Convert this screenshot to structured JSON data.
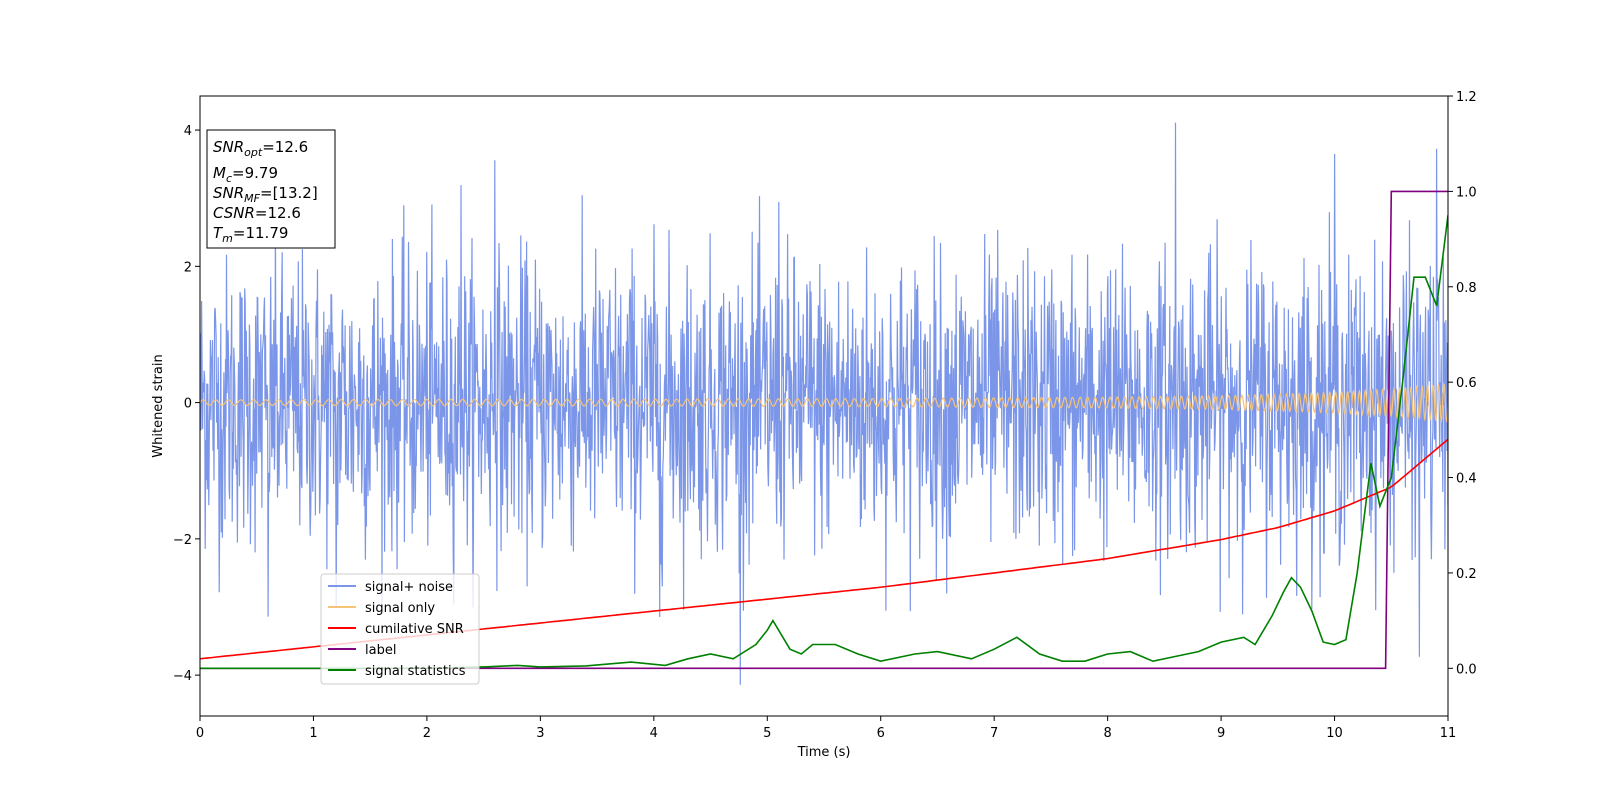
{
  "chart_data": {
    "type": "line",
    "xlabel": "Time (s)",
    "ylabel": "Whitened strain",
    "xlim": [
      0,
      11
    ],
    "ylim": [
      -4.6,
      4.5
    ],
    "y2lim": [
      -0.1,
      1.2
    ],
    "x_ticks": [
      "0",
      "1",
      "2",
      "3",
      "4",
      "5",
      "6",
      "7",
      "8",
      "9",
      "10",
      "11"
    ],
    "y_ticks": [
      "-4",
      "-2",
      "0",
      "2",
      "4"
    ],
    "y2_ticks": [
      "0.0",
      "0.2",
      "0.4",
      "0.6",
      "0.8",
      "1.0",
      "1.2"
    ],
    "grid": false,
    "legend_position": "lower-left",
    "info_box": {
      "snr_opt": "=12.6",
      "mc": "=9.79",
      "snr_mf": "=[13.2]",
      "csnr": "=12.6",
      "tm": "=11.79"
    },
    "series": [
      {
        "name": "signal+ noise",
        "color": "#7b96e8",
        "axis": "left",
        "noise_std": 1.0,
        "spike_x": [
          0.6,
          1.2,
          2.3,
          2.6,
          4.05,
          4.76,
          5.1,
          8.6,
          10.0,
          10.75,
          10.9
        ],
        "spike_y": [
          -3.1,
          -3.0,
          3.2,
          3.6,
          -3.1,
          -4.15,
          3.0,
          4.05,
          3.65,
          -3.55,
          3.6
        ]
      },
      {
        "name": "signal only",
        "color": "#f5c37a",
        "axis": "left",
        "x": [
          0,
          2,
          4,
          6,
          8,
          9,
          10,
          10.5,
          11
        ],
        "envelope": [
          0.04,
          0.045,
          0.05,
          0.06,
          0.08,
          0.1,
          0.15,
          0.2,
          0.28
        ]
      },
      {
        "name": "cumilative SNR",
        "color": "#ff0000",
        "axis": "right",
        "x": [
          0,
          1,
          2,
          3,
          4,
          5,
          6,
          7,
          8,
          9,
          9.5,
          10,
          10.5,
          11
        ],
        "values": [
          0.02,
          0.045,
          0.07,
          0.095,
          0.12,
          0.145,
          0.17,
          0.2,
          0.23,
          0.27,
          0.295,
          0.33,
          0.38,
          0.48
        ]
      },
      {
        "name": "label",
        "color": "#800080",
        "axis": "right",
        "x": [
          0,
          10.45,
          10.5,
          11
        ],
        "values": [
          0.0,
          0.0,
          1.0,
          1.0
        ]
      },
      {
        "name": "signal statistics",
        "color": "#008000",
        "axis": "right",
        "x": [
          0,
          1,
          2,
          2.5,
          2.8,
          3,
          3.4,
          3.8,
          4.1,
          4.3,
          4.5,
          4.7,
          4.9,
          5.0,
          5.05,
          5.2,
          5.3,
          5.4,
          5.6,
          5.8,
          6.0,
          6.3,
          6.5,
          6.8,
          7.0,
          7.2,
          7.4,
          7.6,
          7.8,
          8.0,
          8.2,
          8.4,
          8.6,
          8.8,
          9.0,
          9.2,
          9.3,
          9.45,
          9.55,
          9.62,
          9.7,
          9.8,
          9.9,
          10.0,
          10.1,
          10.2,
          10.32,
          10.4,
          10.5,
          10.6,
          10.7,
          10.8,
          10.9,
          11.0
        ],
        "values": [
          0.0,
          0.0,
          0.0,
          0.003,
          0.006,
          0.003,
          0.005,
          0.013,
          0.006,
          0.02,
          0.03,
          0.02,
          0.05,
          0.08,
          0.1,
          0.04,
          0.03,
          0.05,
          0.05,
          0.03,
          0.015,
          0.03,
          0.035,
          0.02,
          0.04,
          0.065,
          0.03,
          0.015,
          0.015,
          0.03,
          0.035,
          0.015,
          0.025,
          0.035,
          0.055,
          0.065,
          0.05,
          0.11,
          0.16,
          0.19,
          0.17,
          0.12,
          0.055,
          0.05,
          0.06,
          0.2,
          0.43,
          0.34,
          0.4,
          0.6,
          0.82,
          0.82,
          0.76,
          0.95
        ]
      }
    ]
  }
}
